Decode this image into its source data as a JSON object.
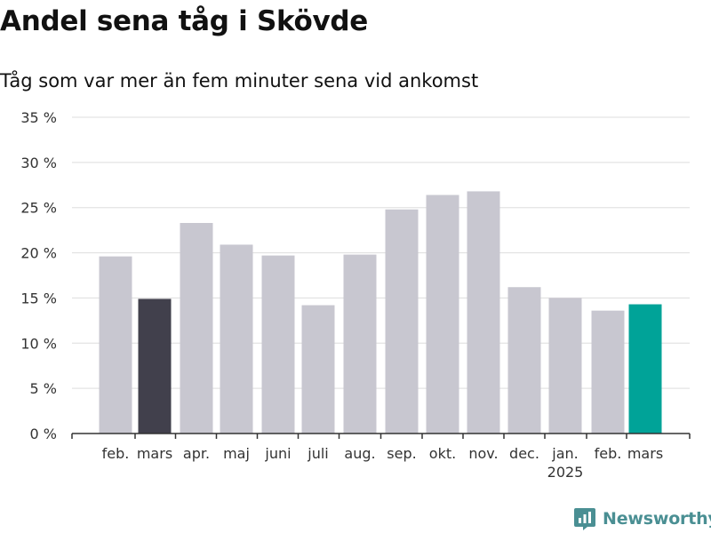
{
  "chart_data": {
    "type": "bar",
    "title": "Andel sena tåg i Skövde",
    "subtitle": "Tåg som var mer än fem minuter sena vid ankomst",
    "categories": [
      "feb.",
      "mars",
      "apr.",
      "maj",
      "juni",
      "juli",
      "aug.",
      "sep.",
      "okt.",
      "nov.",
      "dec.",
      "jan.",
      "feb.",
      "mars"
    ],
    "year_labels": [
      "",
      "",
      "",
      "",
      "",
      "",
      "",
      "",
      "",
      "",
      "",
      "2025",
      "",
      ""
    ],
    "values": [
      19.6,
      14.9,
      23.3,
      20.9,
      19.7,
      14.2,
      19.8,
      24.8,
      26.4,
      26.8,
      16.2,
      15.0,
      13.6,
      14.3
    ],
    "ylim": [
      0,
      35
    ],
    "yticks": [
      0,
      5,
      10,
      15,
      20,
      25,
      30,
      35
    ],
    "ytick_labels": [
      "0 %",
      "5 %",
      "10 %",
      "15 %",
      "20 %",
      "25 %",
      "30 %",
      "35 %"
    ],
    "grid": true,
    "colors": {
      "default": "#c8c7d0",
      "previous_year": "#41404c",
      "current": "#00a398",
      "grid": "#dddddd",
      "axis": "#333333"
    },
    "highlight": {
      "previous_year_index": 1,
      "current_index": 13
    }
  },
  "brand": {
    "name": "Newsworthy",
    "icon": "newsworthy-logo-icon",
    "color": "#4a8f93"
  }
}
